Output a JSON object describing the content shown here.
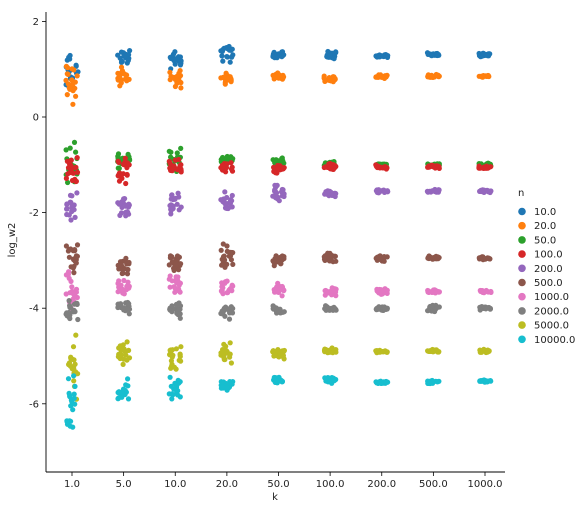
{
  "chart_data": {
    "type": "scatter",
    "title": "",
    "xlabel": "k",
    "ylabel": "log_w2",
    "categories": [
      "1.0",
      "5.0",
      "10.0",
      "20.0",
      "50.0",
      "100.0",
      "200.0",
      "500.0",
      "1000.0"
    ],
    "y_ticks": [
      2,
      0,
      -2,
      -4,
      -6
    ],
    "ylim": [
      -7.5,
      2.2
    ],
    "grid": false,
    "legend": {
      "title": "n",
      "placement": "right"
    },
    "series": [
      {
        "name": "10.0",
        "color": "#1f77b4",
        "centers": [
          0.9,
          1.25,
          1.2,
          1.35,
          1.3,
          1.3,
          1.28,
          1.3,
          1.3
        ],
        "spread": [
          0.75,
          0.25,
          0.25,
          0.3,
          0.1,
          0.12,
          0.05,
          0.05,
          0.05
        ]
      },
      {
        "name": "20.0",
        "color": "#ff7f0e",
        "centers": [
          0.8,
          0.85,
          0.8,
          0.8,
          0.85,
          0.8,
          0.85,
          0.85,
          0.85
        ],
        "spread": [
          0.6,
          0.25,
          0.25,
          0.2,
          0.08,
          0.1,
          0.05,
          0.05,
          0.03
        ]
      },
      {
        "name": "50.0",
        "color": "#2ca02c",
        "centers": [
          -1.0,
          -0.9,
          -0.9,
          -0.9,
          -0.95,
          -1.0,
          -1.0,
          -1.0,
          -1.0
        ],
        "spread": [
          0.7,
          0.25,
          0.35,
          0.15,
          0.15,
          0.1,
          0.05,
          0.05,
          0.05
        ]
      },
      {
        "name": "100.0",
        "color": "#d62728",
        "centers": [
          -1.15,
          -1.15,
          -1.05,
          -1.1,
          -1.1,
          -1.05,
          -1.05,
          -1.05,
          -1.05
        ],
        "spread": [
          0.55,
          0.4,
          0.3,
          0.2,
          0.15,
          0.1,
          0.06,
          0.06,
          0.05
        ]
      },
      {
        "name": "200.0",
        "color": "#9467bd",
        "centers": [
          -1.9,
          -1.9,
          -1.8,
          -1.75,
          -1.6,
          -1.6,
          -1.55,
          -1.55,
          -1.55
        ],
        "spread": [
          0.45,
          0.3,
          0.35,
          0.3,
          0.25,
          0.1,
          0.05,
          0.05,
          0.05
        ]
      },
      {
        "name": "500.0",
        "color": "#8c564b",
        "centers": [
          -2.95,
          -3.1,
          -3.0,
          -2.9,
          -3.0,
          -2.95,
          -2.95,
          -2.95,
          -2.95
        ],
        "spread": [
          0.5,
          0.3,
          0.3,
          0.3,
          0.15,
          0.15,
          0.1,
          0.05,
          0.05
        ]
      },
      {
        "name": "1000.0",
        "color": "#e377c2",
        "centers": [
          -3.6,
          -3.55,
          -3.5,
          -3.6,
          -3.6,
          -3.65,
          -3.65,
          -3.65,
          -3.65
        ],
        "spread": [
          0.6,
          0.3,
          0.35,
          0.3,
          0.2,
          0.15,
          0.1,
          0.05,
          0.05
        ]
      },
      {
        "name": "2000.0",
        "color": "#7f7f7f",
        "centers": [
          -4.05,
          -3.95,
          -4.05,
          -4.05,
          -4.05,
          -4.0,
          -4.0,
          -4.0,
          -4.0
        ],
        "spread": [
          0.4,
          0.2,
          0.2,
          0.2,
          0.15,
          0.1,
          0.06,
          0.1,
          0.05
        ]
      },
      {
        "name": "5000.0",
        "color": "#bcbd22",
        "centers": [
          -5.3,
          -4.95,
          -5.0,
          -4.95,
          -4.95,
          -4.9,
          -4.9,
          -4.9,
          -4.9
        ],
        "spread": [
          0.8,
          0.45,
          0.35,
          0.3,
          0.2,
          0.1,
          0.05,
          0.05,
          0.05
        ]
      },
      {
        "name": "10000.0",
        "color": "#17becf",
        "centers": [
          -5.9,
          -5.7,
          -5.7,
          -5.6,
          -5.5,
          -5.5,
          -5.55,
          -5.55,
          -5.52
        ],
        "spread": [
          0.9,
          0.4,
          0.3,
          0.2,
          0.1,
          0.1,
          0.05,
          0.05,
          0.03
        ]
      }
    ]
  }
}
